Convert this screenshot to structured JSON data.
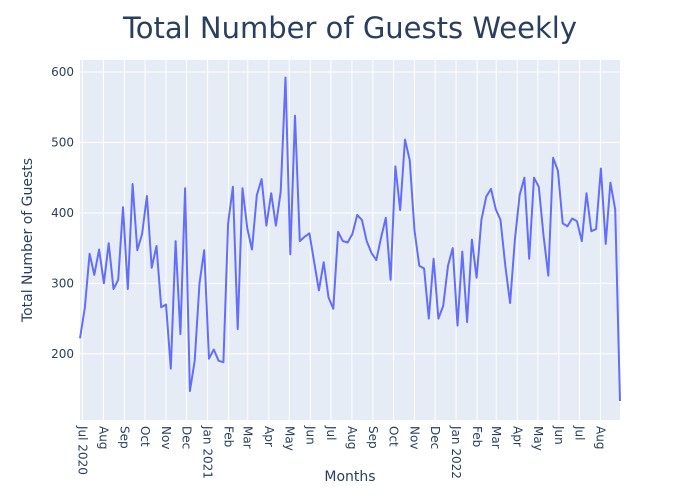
{
  "chart_data": {
    "type": "line",
    "title": "Total Number of Guests Weekly",
    "x_label": "Months",
    "y_label": "Total Number of Guests",
    "series": [
      {
        "name": "Total Number of Guests",
        "color": "#636efa",
        "values": [
          222,
          265,
          342,
          312,
          348,
          300,
          357,
          292,
          305,
          408,
          292,
          441,
          347,
          370,
          424,
          322,
          353,
          266,
          270,
          179,
          360,
          228,
          435,
          147,
          190,
          300,
          347,
          193,
          206,
          190,
          188,
          385,
          437,
          235,
          435,
          378,
          348,
          425,
          448,
          382,
          428,
          382,
          430,
          592,
          341,
          538,
          360,
          366,
          371,
          330,
          290,
          330,
          280,
          264,
          373,
          360,
          358,
          370,
          397,
          390,
          360,
          343,
          333,
          365,
          393,
          305,
          466,
          404,
          504,
          475,
          375,
          325,
          321,
          250,
          335,
          250,
          268,
          325,
          350,
          240,
          345,
          245,
          362,
          308,
          390,
          423,
          434,
          405,
          390,
          325,
          272,
          362,
          425,
          450,
          335,
          450,
          437,
          368,
          311,
          478,
          460,
          385,
          381,
          392,
          388,
          360,
          428,
          374,
          377,
          463,
          356,
          443,
          405,
          133
        ]
      }
    ],
    "xlim": [
      0,
      113
    ],
    "xticks": [
      {
        "value": 0.5,
        "label": "Jul 2020"
      },
      {
        "value": 4.9,
        "label": "Aug"
      },
      {
        "value": 9.3,
        "label": "Sep"
      },
      {
        "value": 13.6,
        "label": "Oct"
      },
      {
        "value": 18.0,
        "label": "Nov"
      },
      {
        "value": 22.3,
        "label": "Dec"
      },
      {
        "value": 26.7,
        "label": "Jan 2021"
      },
      {
        "value": 31.1,
        "label": "Feb"
      },
      {
        "value": 35.1,
        "label": "Mar"
      },
      {
        "value": 39.5,
        "label": "Apr"
      },
      {
        "value": 43.8,
        "label": "May"
      },
      {
        "value": 48.2,
        "label": "Jun"
      },
      {
        "value": 52.5,
        "label": "Jul"
      },
      {
        "value": 56.9,
        "label": "Aug"
      },
      {
        "value": 61.3,
        "label": "Sep"
      },
      {
        "value": 65.6,
        "label": "Oct"
      },
      {
        "value": 70.0,
        "label": "Nov"
      },
      {
        "value": 74.3,
        "label": "Dec"
      },
      {
        "value": 78.7,
        "label": "Jan 2022"
      },
      {
        "value": 83.1,
        "label": "Feb"
      },
      {
        "value": 87.1,
        "label": "Mar"
      },
      {
        "value": 91.5,
        "label": "Apr"
      },
      {
        "value": 95.8,
        "label": "May"
      },
      {
        "value": 100.2,
        "label": "Jun"
      },
      {
        "value": 104.5,
        "label": "Jul"
      },
      {
        "value": 108.9,
        "label": "Aug"
      }
    ],
    "ylim": [
      106,
      617
    ],
    "yticks": [
      200,
      300,
      400,
      500,
      600
    ],
    "grid": true
  }
}
